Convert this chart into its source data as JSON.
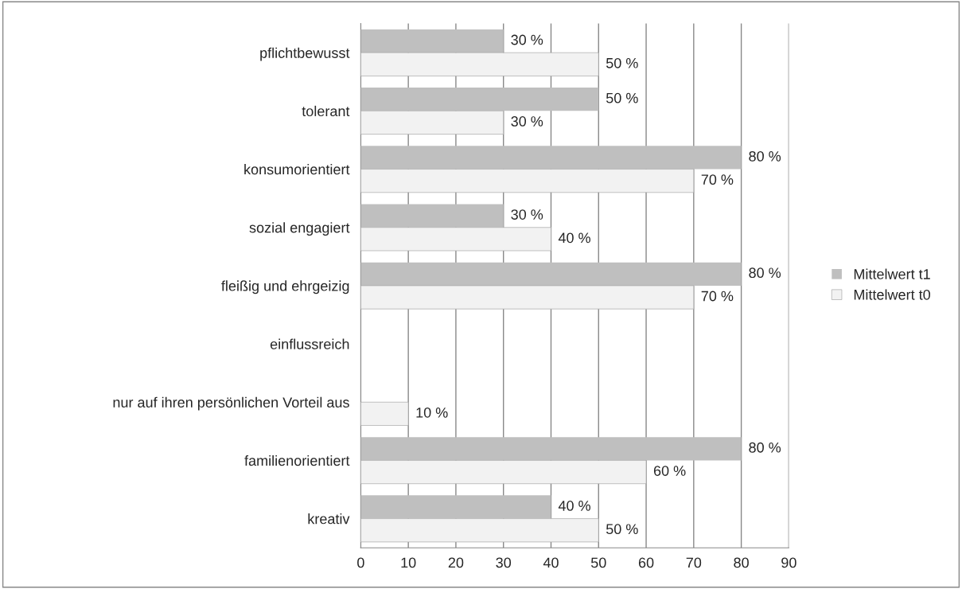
{
  "chart_data": {
    "type": "bar",
    "orientation": "horizontal",
    "categories": [
      "pflichtbewusst",
      "tolerant",
      "konsumorientiert",
      "sozial engagiert",
      "fleißig und ehrgeizig",
      "einflussreich",
      "nur auf ihren persönlichen Vorteil aus",
      "familienorientiert",
      "kreativ"
    ],
    "series": [
      {
        "name": "Mittelwert t1",
        "color": "#bfbfbf",
        "values": [
          30,
          50,
          80,
          30,
          80,
          null,
          null,
          80,
          40
        ],
        "value_labels": [
          "30 %",
          "50 %",
          "80 %",
          "30 %",
          "80 %",
          null,
          null,
          "80 %",
          "40 %"
        ]
      },
      {
        "name": "Mittelwert t0",
        "color": "#f2f2f2",
        "values": [
          50,
          30,
          70,
          40,
          70,
          null,
          10,
          60,
          50
        ],
        "value_labels": [
          "50 %",
          "30 %",
          "70 %",
          "40 %",
          "70 %",
          null,
          "10 %",
          "60 %",
          "50 %"
        ]
      }
    ],
    "xlim": [
      0,
      90
    ],
    "xticks": [
      0,
      10,
      20,
      30,
      40,
      50,
      60,
      70,
      80,
      90
    ],
    "grid": "x",
    "legend": "right"
  }
}
